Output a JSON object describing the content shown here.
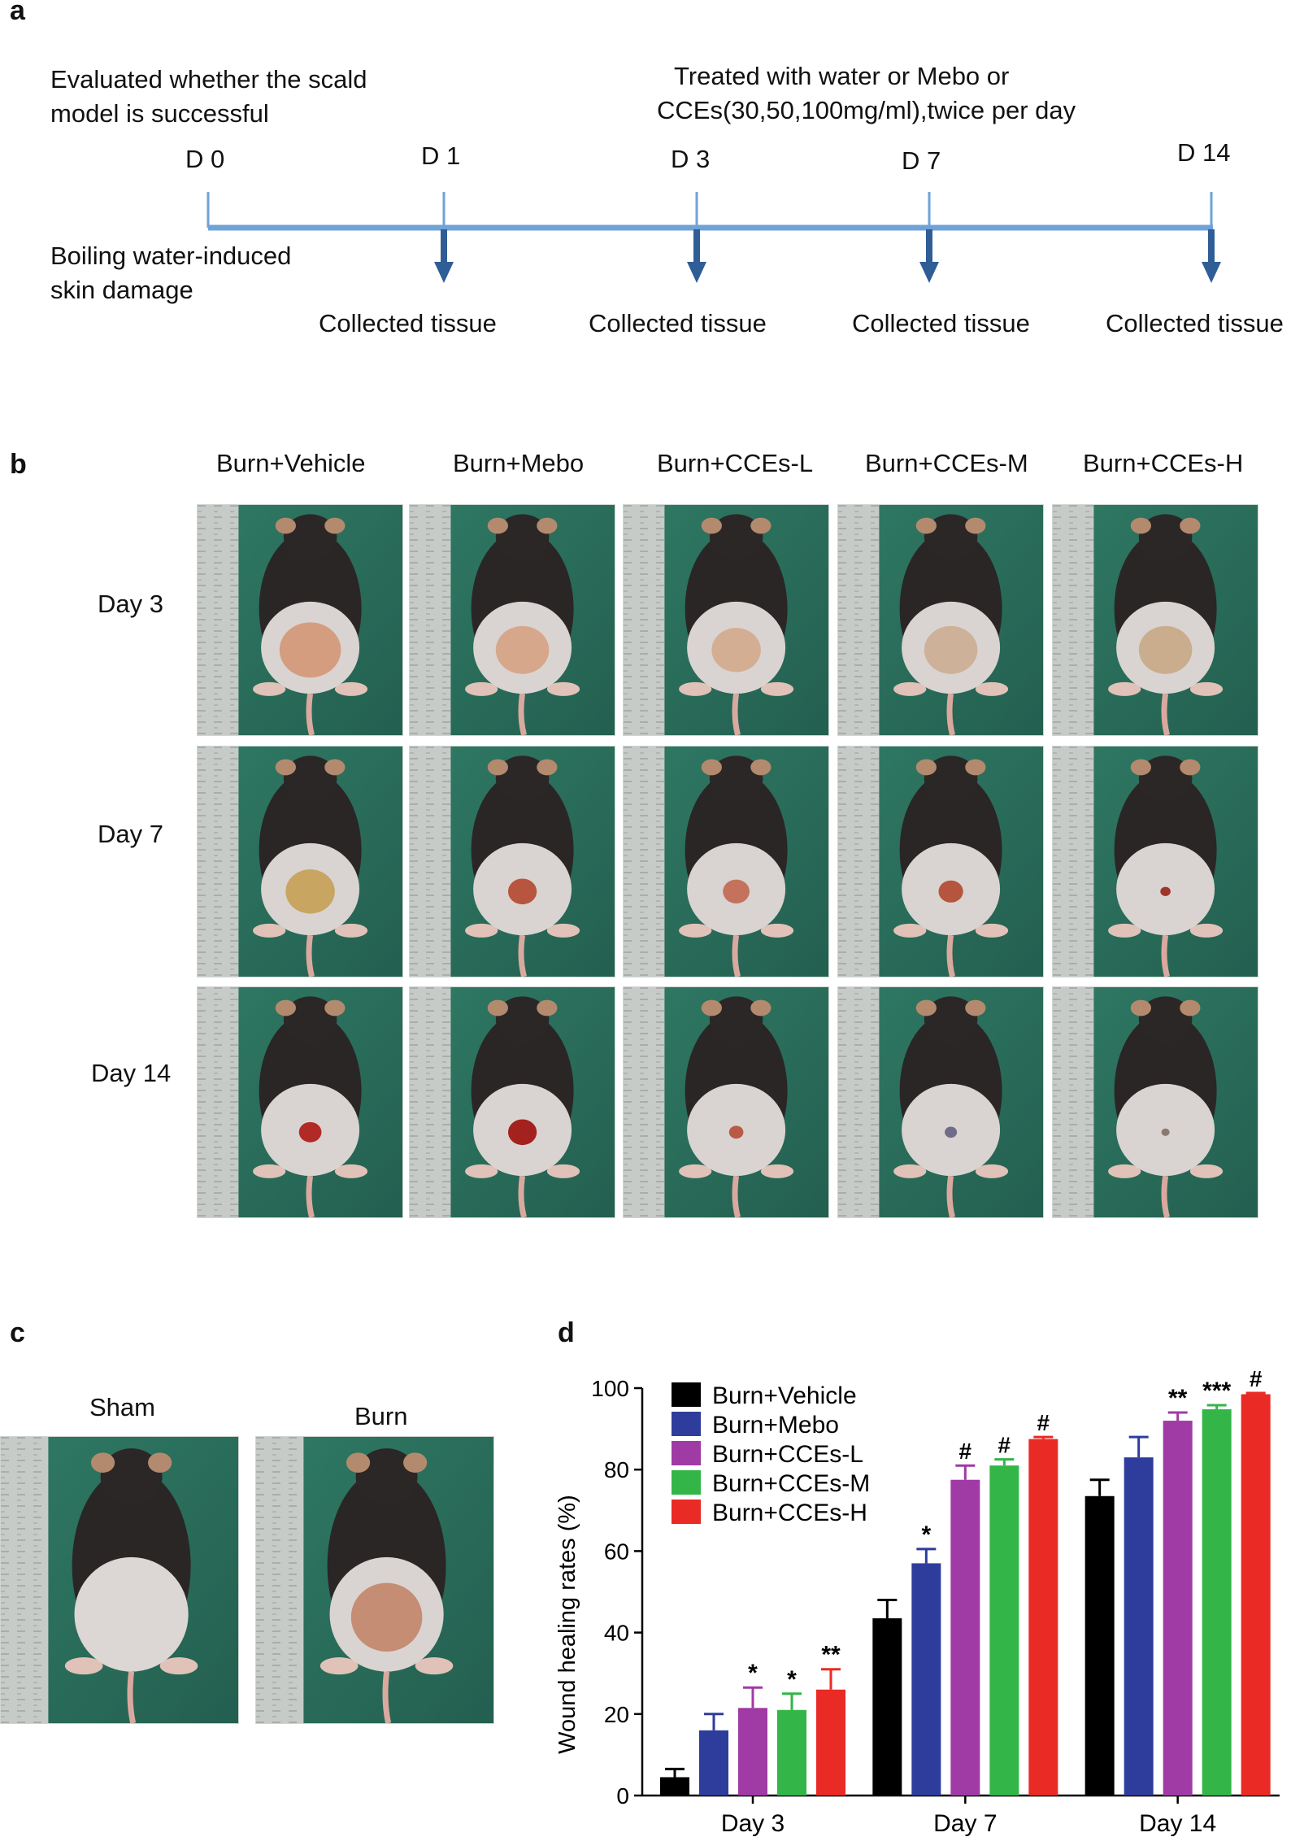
{
  "panels": {
    "a": {
      "letter": "a",
      "note_left_line1": "Evaluated whether the scald",
      "note_left_line2": "model is successful",
      "note_right_line1": "Treated with water or Mebo or",
      "note_right_line2": "CCEs(30,50,100mg/ml),twice per day",
      "induce_line1": "Boiling water-induced",
      "induce_line2": "skin damage",
      "days": [
        "D 0",
        "D 1",
        "D 3",
        "D 7",
        "D 14"
      ],
      "collected": [
        "Collected tissue",
        "Collected tissue",
        "Collected tissue",
        "Collected tissue"
      ],
      "line_color": "#6fa3d8",
      "arrow_color": "#2f5d96"
    },
    "b": {
      "letter": "b",
      "columns": [
        "Burn+Vehicle",
        "Burn+Mebo",
        "Burn+CCEs-L",
        "Burn+CCEs-M",
        "Burn+CCEs-H"
      ],
      "rows": [
        "Day 3",
        "Day 7",
        "Day 14"
      ]
    },
    "c": {
      "letter": "c",
      "labels": [
        "Sham",
        "Burn"
      ]
    },
    "d": {
      "letter": "d"
    }
  },
  "chart_data": {
    "type": "bar",
    "ylabel": "Wound healing rates (%)",
    "xlabel": "",
    "ylim": [
      0,
      100
    ],
    "yticks": [
      "0",
      "20",
      "40",
      "60",
      "80",
      "100"
    ],
    "categories": [
      "Day 3",
      "Day 7",
      "Day 14"
    ],
    "legend_position": "top-left",
    "series": [
      {
        "name": "Burn+Vehicle",
        "color": "#000000",
        "values": [
          4.5,
          43.5,
          73.5
        ],
        "errors": [
          2,
          4.5,
          4
        ],
        "marks": [
          "",
          "",
          ""
        ]
      },
      {
        "name": "Burn+Mebo",
        "color": "#2e3d9b",
        "values": [
          16,
          57,
          83
        ],
        "errors": [
          4,
          3.5,
          5
        ],
        "marks": [
          "",
          "*",
          ""
        ]
      },
      {
        "name": "Burn+CCEs-L",
        "color": "#a03aa5",
        "values": [
          21.5,
          77.5,
          92
        ],
        "errors": [
          5,
          3.5,
          2
        ],
        "marks": [
          "*",
          "#",
          "**"
        ]
      },
      {
        "name": "Burn+CCEs-M",
        "color": "#34b548",
        "values": [
          21,
          81,
          94.8
        ],
        "errors": [
          4,
          1.5,
          1
        ],
        "marks": [
          "*",
          "#",
          "***"
        ]
      },
      {
        "name": "Burn+CCEs-H",
        "color": "#ea2a24",
        "values": [
          26,
          87.5,
          98.5
        ],
        "errors": [
          5,
          0.5,
          0.3
        ],
        "marks": [
          "**",
          "#",
          "#"
        ]
      }
    ]
  }
}
